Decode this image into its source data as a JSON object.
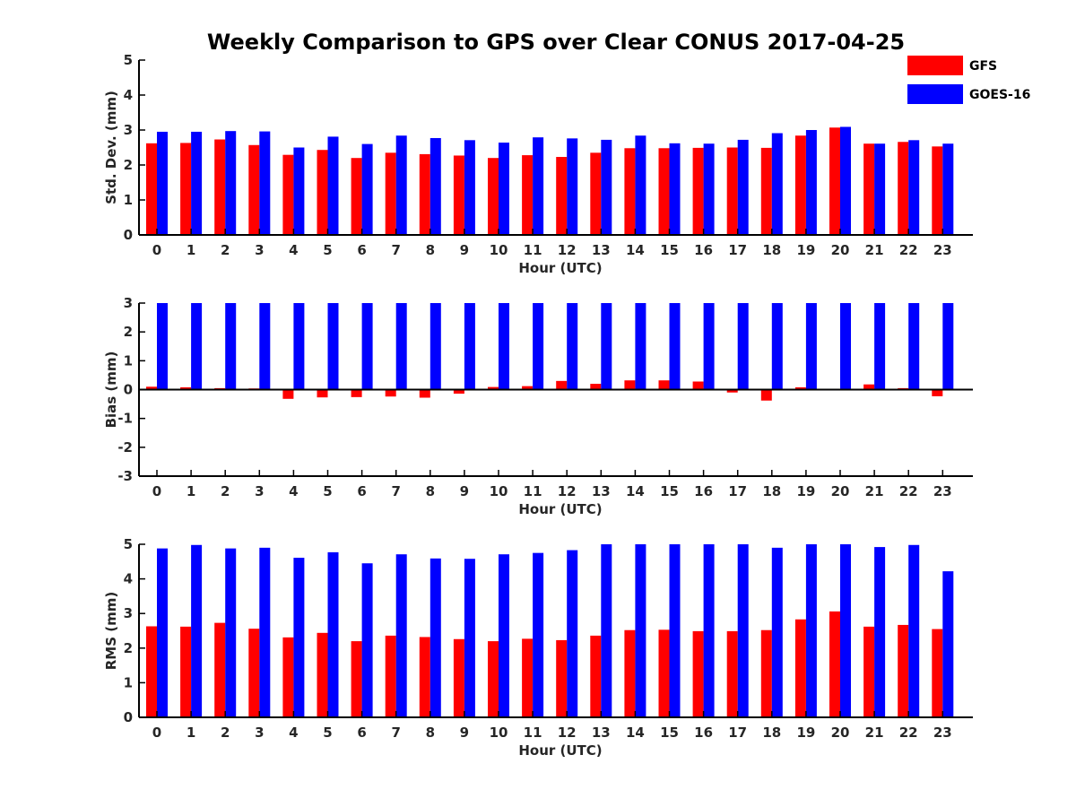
{
  "title": "Weekly Comparison to GPS over Clear CONUS 2017-04-25",
  "legend": [
    {
      "name": "GFS",
      "color": "#ff0000"
    },
    {
      "name": "GOES-16",
      "color": "#0000ff"
    }
  ],
  "chart_data": [
    {
      "type": "bar",
      "title": "Weekly Comparison to GPS over Clear CONUS 2017-04-25",
      "xlabel": "Hour (UTC)",
      "ylabel": "Std. Dev. (mm)",
      "ylim": [
        0,
        5
      ],
      "yticks": [
        0,
        1,
        2,
        3,
        4,
        5
      ],
      "categories": [
        "0",
        "1",
        "2",
        "3",
        "4",
        "5",
        "6",
        "7",
        "8",
        "9",
        "10",
        "11",
        "12",
        "13",
        "14",
        "15",
        "16",
        "17",
        "18",
        "19",
        "20",
        "21",
        "22",
        "23"
      ],
      "series": [
        {
          "name": "GFS",
          "color": "#ff0000",
          "values": [
            2.62,
            2.63,
            2.73,
            2.57,
            2.29,
            2.43,
            2.2,
            2.35,
            2.31,
            2.27,
            2.2,
            2.28,
            2.23,
            2.35,
            2.48,
            2.48,
            2.49,
            2.5,
            2.49,
            2.84,
            3.07,
            2.61,
            2.66,
            2.53
          ]
        },
        {
          "name": "GOES-16",
          "color": "#0000ff",
          "values": [
            2.95,
            2.95,
            2.97,
            2.96,
            2.5,
            2.81,
            2.6,
            2.84,
            2.77,
            2.71,
            2.64,
            2.79,
            2.76,
            2.72,
            2.84,
            2.62,
            2.61,
            2.72,
            2.91,
            3.0,
            3.09,
            2.61,
            2.71,
            2.61
          ]
        }
      ],
      "grid": false,
      "legend_position": "top-right"
    },
    {
      "type": "bar",
      "xlabel": "Hour (UTC)",
      "ylabel": "Bias (mm)",
      "ylim": [
        -3,
        3
      ],
      "yticks": [
        -3,
        -2,
        -1,
        0,
        1,
        2,
        3
      ],
      "categories": [
        "0",
        "1",
        "2",
        "3",
        "4",
        "5",
        "6",
        "7",
        "8",
        "9",
        "10",
        "11",
        "12",
        "13",
        "14",
        "15",
        "16",
        "17",
        "18",
        "19",
        "20",
        "21",
        "22",
        "23"
      ],
      "series": [
        {
          "name": "GFS",
          "color": "#ff0000",
          "values": [
            0.1,
            0.08,
            0.05,
            0.04,
            -0.32,
            -0.27,
            -0.26,
            -0.24,
            -0.28,
            -0.14,
            0.09,
            0.12,
            0.3,
            0.2,
            0.32,
            0.32,
            0.28,
            -0.1,
            -0.38,
            0.08,
            0.0,
            0.18,
            0.05,
            -0.23
          ]
        },
        {
          "name": "GOES-16",
          "color": "#0000ff",
          "values": [
            3,
            3,
            3,
            3,
            3,
            3,
            3,
            3,
            3,
            3,
            3,
            3,
            3,
            3,
            3,
            3,
            3,
            3,
            3,
            3,
            3,
            3,
            3,
            3
          ]
        }
      ],
      "grid": false
    },
    {
      "type": "bar",
      "xlabel": "Hour (UTC)",
      "ylabel": "RMS (mm)",
      "ylim": [
        0,
        5
      ],
      "yticks": [
        0,
        1,
        2,
        3,
        4,
        5
      ],
      "categories": [
        "0",
        "1",
        "2",
        "3",
        "4",
        "5",
        "6",
        "7",
        "8",
        "9",
        "10",
        "11",
        "12",
        "13",
        "14",
        "15",
        "16",
        "17",
        "18",
        "19",
        "20",
        "21",
        "22",
        "23"
      ],
      "series": [
        {
          "name": "GFS",
          "color": "#ff0000",
          "values": [
            2.63,
            2.62,
            2.73,
            2.56,
            2.31,
            2.44,
            2.2,
            2.36,
            2.32,
            2.26,
            2.2,
            2.27,
            2.23,
            2.36,
            2.52,
            2.53,
            2.49,
            2.49,
            2.52,
            2.83,
            3.06,
            2.62,
            2.67,
            2.55
          ]
        },
        {
          "name": "GOES-16",
          "color": "#0000ff",
          "values": [
            4.88,
            4.98,
            4.88,
            4.9,
            4.61,
            4.77,
            4.45,
            4.71,
            4.59,
            4.58,
            4.71,
            4.75,
            4.83,
            5.0,
            5.0,
            5.0,
            5.0,
            5.0,
            4.9,
            5.0,
            5.0,
            4.92,
            4.98,
            4.22
          ]
        }
      ],
      "grid": false
    }
  ]
}
